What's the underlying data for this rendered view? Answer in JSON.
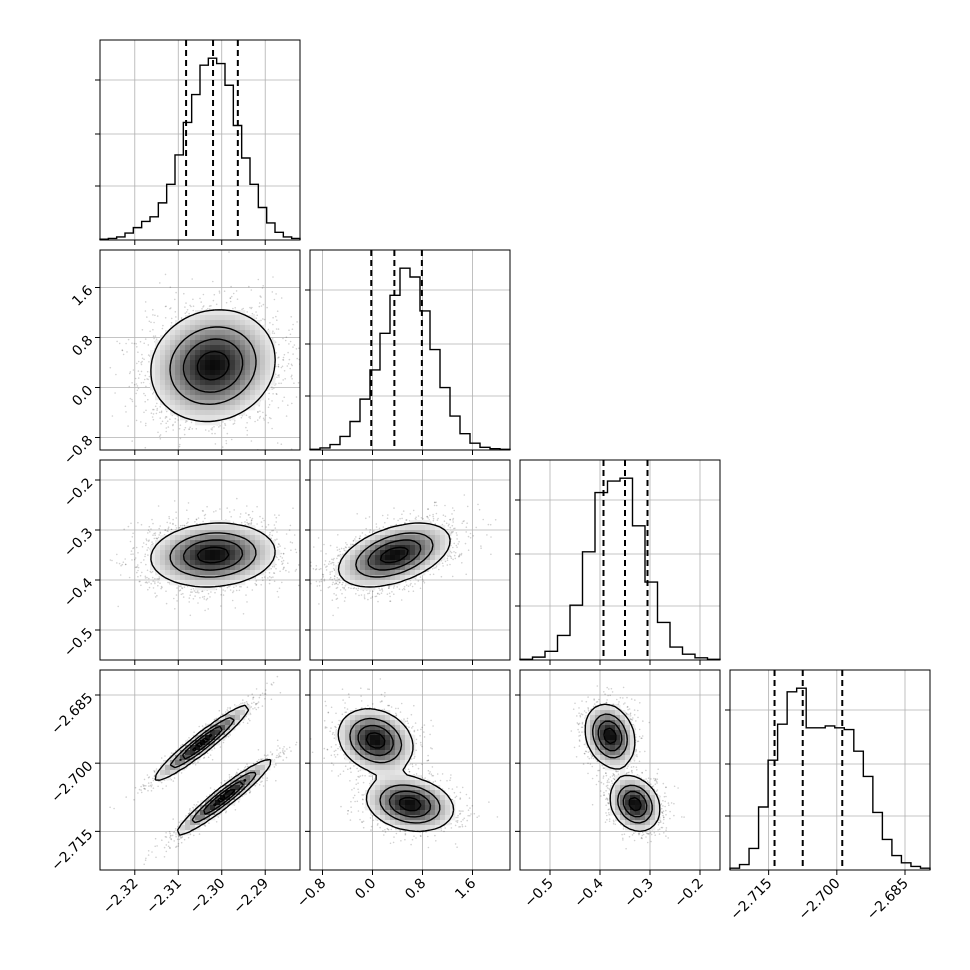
{
  "chart_data": {
    "type": "corner",
    "grid": true,
    "parameters": [
      {
        "range": [
          -2.328,
          -2.282
        ],
        "ticks": [
          -2.32,
          -2.31,
          -2.3,
          -2.29
        ],
        "tick_labels": [
          "−2.32",
          "−2.31",
          "−2.30",
          "−2.29"
        ],
        "median": -2.302,
        "quantiles": [
          -2.3082,
          -2.2963
        ]
      },
      {
        "range": [
          -1.0,
          2.2
        ],
        "ticks": [
          -0.8,
          0.0,
          0.8,
          1.6
        ],
        "tick_labels": [
          "−0.8",
          "0.0",
          "0.8",
          "1.6"
        ],
        "median": 0.35,
        "quantiles": [
          -0.02,
          0.79
        ]
      },
      {
        "range": [
          -0.56,
          -0.16
        ],
        "ticks": [
          -0.5,
          -0.4,
          -0.3,
          -0.2
        ],
        "tick_labels": [
          "−0.5",
          "−0.4",
          "−0.3",
          "−0.2"
        ],
        "median": -0.35,
        "quantiles": [
          -0.393,
          -0.305
        ]
      },
      {
        "range": [
          -2.7235,
          -2.6795
        ],
        "ticks": [
          -2.715,
          -2.7,
          -2.685
        ],
        "tick_labels": [
          "−2.715",
          "−2.700",
          "−2.685"
        ],
        "median": -2.7075,
        "quantiles": [
          -2.7137,
          -2.6988
        ]
      }
    ],
    "histograms": [
      [
        1,
        2,
        4,
        9,
        16,
        24,
        30,
        48,
        72,
        110,
        152,
        188,
        226,
        235,
        228,
        200,
        148,
        106,
        72,
        42,
        22,
        10,
        4,
        2
      ],
      [
        1,
        3,
        8,
        20,
        42,
        75,
        118,
        172,
        228,
        268,
        255,
        205,
        148,
        92,
        50,
        24,
        10,
        4,
        2,
        1
      ],
      [
        1,
        4,
        12,
        34,
        76,
        150,
        232,
        248,
        252,
        186,
        108,
        52,
        18,
        8,
        3,
        1
      ],
      [
        2,
        6,
        24,
        70,
        122,
        162,
        198,
        202,
        158,
        158,
        160,
        158,
        156,
        132,
        104,
        64,
        34,
        16,
        8,
        4,
        2
      ]
    ],
    "pairs": [
      {
        "x": 0,
        "y": 1,
        "modes": [
          {
            "mx": -2.302,
            "my": 0.35,
            "sx": 0.0072,
            "sy": 0.45,
            "rho": 0.1,
            "w": 1.0
          }
        ]
      },
      {
        "x": 0,
        "y": 2,
        "modes": [
          {
            "mx": -2.302,
            "my": -0.35,
            "sx": 0.0072,
            "sy": 0.032,
            "rho": 0.1,
            "w": 1.0
          }
        ]
      },
      {
        "x": 1,
        "y": 2,
        "modes": [
          {
            "mx": 0.35,
            "my": -0.35,
            "sx": 0.45,
            "sy": 0.032,
            "rho": 0.45,
            "w": 1.0
          }
        ]
      },
      {
        "x": 0,
        "y": 3,
        "modes": [
          {
            "mx": -2.3045,
            "my": -2.6955,
            "sx": 0.0055,
            "sy": 0.0042,
            "rho": 0.95,
            "w": 0.5
          },
          {
            "mx": -2.2995,
            "my": -2.7075,
            "sx": 0.0055,
            "sy": 0.0042,
            "rho": 0.95,
            "w": 0.5
          }
        ]
      },
      {
        "x": 1,
        "y": 3,
        "modes": [
          {
            "mx": 0.05,
            "my": -2.695,
            "sx": 0.3,
            "sy": 0.0035,
            "rho": -0.2,
            "w": 0.5
          },
          {
            "mx": 0.6,
            "my": -2.709,
            "sx": 0.35,
            "sy": 0.003,
            "rho": -0.2,
            "w": 0.5
          }
        ]
      },
      {
        "x": 2,
        "y": 3,
        "modes": [
          {
            "mx": -0.38,
            "my": -2.694,
            "sx": 0.025,
            "sy": 0.0035,
            "rho": -0.2,
            "w": 0.5
          },
          {
            "mx": -0.33,
            "my": -2.709,
            "sx": 0.025,
            "sy": 0.003,
            "rho": -0.2,
            "w": 0.5
          }
        ]
      }
    ]
  }
}
